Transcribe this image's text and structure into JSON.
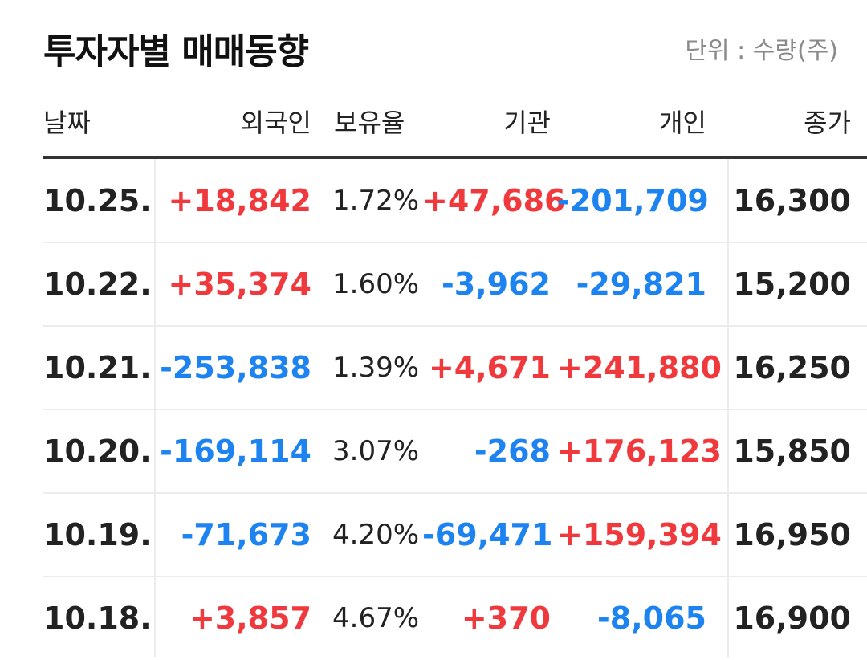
{
  "header": {
    "title": "투자자별 매매동향",
    "unit_label": "단위 : 수량(주)"
  },
  "columns": {
    "date": "날짜",
    "foreign": "외국인",
    "holding": "보유율",
    "institution": "기관",
    "individual": "개인",
    "close": "종가"
  },
  "colors": {
    "up": "#f0393d",
    "down": "#1d83f1",
    "text": "#222222",
    "muted": "#8a8a8a"
  },
  "rows": [
    {
      "date": "10.25.",
      "foreign": "+18,842",
      "holding": "1.72%",
      "institution": "+47,686",
      "individual": "-201,709",
      "close": "16,300"
    },
    {
      "date": "10.22.",
      "foreign": "+35,374",
      "holding": "1.60%",
      "institution": "-3,962",
      "individual": "-29,821",
      "close": "15,200"
    },
    {
      "date": "10.21.",
      "foreign": "-253,838",
      "holding": "1.39%",
      "institution": "+4,671",
      "individual": "+241,880",
      "close": "16,250"
    },
    {
      "date": "10.20.",
      "foreign": "-169,114",
      "holding": "3.07%",
      "institution": "-268",
      "individual": "+176,123",
      "close": "15,850"
    },
    {
      "date": "10.19.",
      "foreign": "-71,673",
      "holding": "4.20%",
      "institution": "-69,471",
      "individual": "+159,394",
      "close": "16,950"
    },
    {
      "date": "10.18.",
      "foreign": "+3,857",
      "holding": "4.67%",
      "institution": "+370",
      "individual": "-8,065",
      "close": "16,900"
    }
  ]
}
